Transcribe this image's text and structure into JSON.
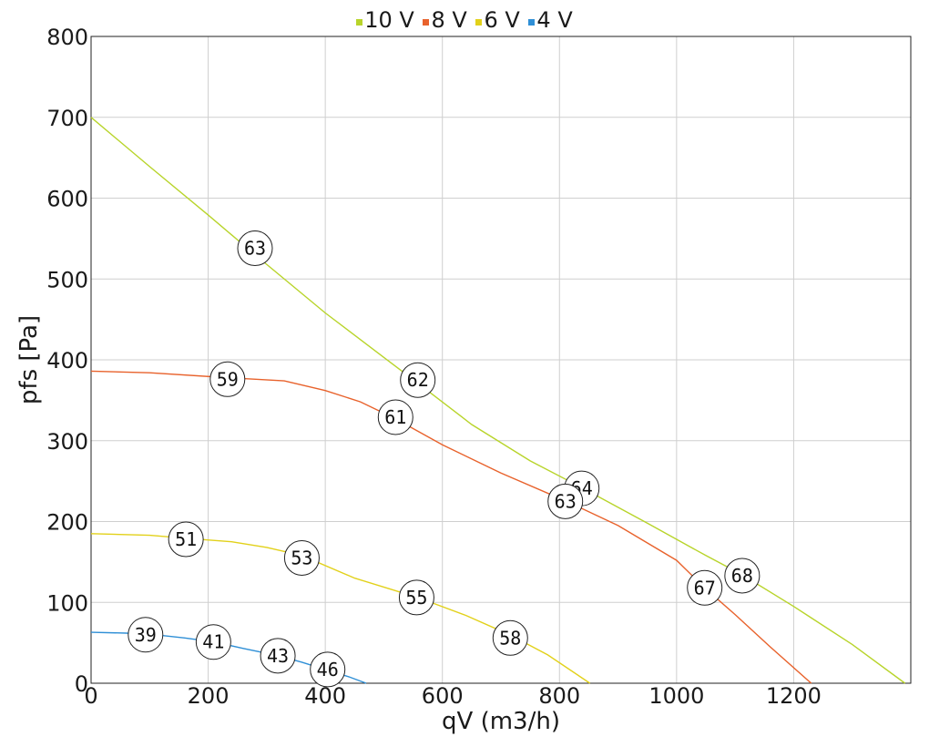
{
  "chart_data": {
    "type": "line",
    "xlabel": "qV (m3/h)",
    "ylabel": "pfs [Pa]",
    "xlim": [
      0,
      1400
    ],
    "ylim": [
      0,
      800
    ],
    "x_ticks": [
      0,
      200,
      400,
      600,
      800,
      1000,
      1200
    ],
    "y_ticks": [
      0,
      100,
      200,
      300,
      400,
      500,
      600,
      700,
      800
    ],
    "grid": true,
    "legend_position": "top-center",
    "series": [
      {
        "name": "10 V",
        "color": "#b8d42a",
        "points": [
          [
            0,
            700
          ],
          [
            100,
            639
          ],
          [
            200,
            579
          ],
          [
            280,
            530
          ],
          [
            400,
            458
          ],
          [
            500,
            403
          ],
          [
            560,
            370
          ],
          [
            650,
            320
          ],
          [
            750,
            275
          ],
          [
            835,
            243
          ],
          [
            950,
            198
          ],
          [
            1050,
            158
          ],
          [
            1110,
            135
          ],
          [
            1200,
            95
          ],
          [
            1300,
            48
          ],
          [
            1390,
            0
          ]
        ],
        "labels": [
          {
            "x": 280,
            "y": 538,
            "text": "63"
          },
          {
            "x": 558,
            "y": 375,
            "text": "62"
          },
          {
            "x": 838,
            "y": 241,
            "text": "64"
          },
          {
            "x": 1112,
            "y": 133,
            "text": "68"
          }
        ]
      },
      {
        "name": "8 V",
        "color": "#e8622c",
        "points": [
          [
            0,
            386
          ],
          [
            100,
            384
          ],
          [
            230,
            378
          ],
          [
            330,
            374
          ],
          [
            400,
            362
          ],
          [
            460,
            348
          ],
          [
            520,
            327
          ],
          [
            600,
            295
          ],
          [
            700,
            260
          ],
          [
            812,
            225
          ],
          [
            900,
            195
          ],
          [
            1000,
            152
          ],
          [
            1048,
            118
          ],
          [
            1100,
            85
          ],
          [
            1160,
            45
          ],
          [
            1230,
            0
          ]
        ],
        "labels": [
          {
            "x": 233,
            "y": 376,
            "text": "59"
          },
          {
            "x": 520,
            "y": 329,
            "text": "61"
          },
          {
            "x": 810,
            "y": 225,
            "text": "63"
          },
          {
            "x": 1048,
            "y": 118,
            "text": "67"
          }
        ]
      },
      {
        "name": "6 V",
        "color": "#e2d11a",
        "points": [
          [
            0,
            185
          ],
          [
            100,
            183
          ],
          [
            165,
            179
          ],
          [
            240,
            175
          ],
          [
            300,
            168
          ],
          [
            360,
            158
          ],
          [
            450,
            130
          ],
          [
            558,
            106
          ],
          [
            640,
            84
          ],
          [
            715,
            60
          ],
          [
            780,
            35
          ],
          [
            852,
            0
          ]
        ],
        "labels": [
          {
            "x": 162,
            "y": 178,
            "text": "51"
          },
          {
            "x": 360,
            "y": 155,
            "text": "53"
          },
          {
            "x": 556,
            "y": 106,
            "text": "55"
          },
          {
            "x": 716,
            "y": 56,
            "text": "58"
          }
        ]
      },
      {
        "name": "4 V",
        "color": "#2f8fd6",
        "points": [
          [
            0,
            63
          ],
          [
            60,
            62
          ],
          [
            110,
            60
          ],
          [
            160,
            56
          ],
          [
            210,
            51
          ],
          [
            260,
            43
          ],
          [
            320,
            34
          ],
          [
            360,
            26
          ],
          [
            400,
            17
          ],
          [
            440,
            8
          ],
          [
            470,
            0
          ]
        ],
        "labels": [
          {
            "x": 93,
            "y": 60,
            "text": "39"
          },
          {
            "x": 209,
            "y": 51,
            "text": "41"
          },
          {
            "x": 319,
            "y": 34,
            "text": "43"
          },
          {
            "x": 404,
            "y": 17,
            "text": "46"
          }
        ]
      }
    ]
  }
}
